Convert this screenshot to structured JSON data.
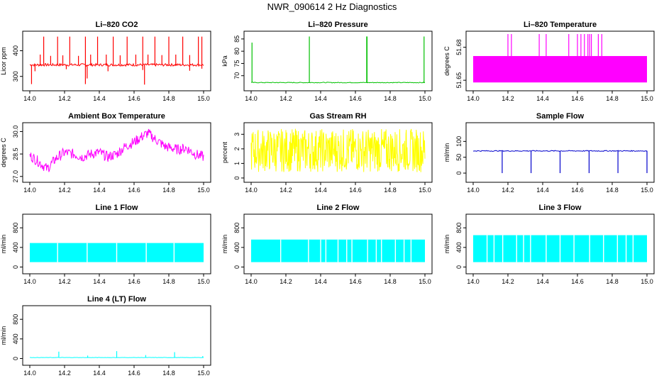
{
  "title": "NWR_090614  2 Hz Diagnostics",
  "chart_data": [
    {
      "type": "line",
      "title": "Li–820 CO2",
      "ylabel": "Licor ppm",
      "xlim": [
        14.0,
        15.0
      ],
      "ylim": [
        255,
        465
      ],
      "x_ticks": [
        "14.0",
        "14.2",
        "14.4",
        "14.6",
        "14.8",
        "15.0"
      ],
      "y_ticks": [
        {
          "v": 300,
          "label": "300"
        },
        {
          "v": 400,
          "label": "400"
        }
      ],
      "color": "#ff0000",
      "gen": {
        "mode": "noisy",
        "base": 345,
        "noise": 5,
        "n": 250
      },
      "spikes": [
        {
          "x": 14.08,
          "y": 455
        },
        {
          "x": 14.16,
          "y": 455
        },
        {
          "x": 14.23,
          "y": 455
        },
        {
          "x": 14.32,
          "y": 455
        },
        {
          "x": 14.39,
          "y": 455
        },
        {
          "x": 14.48,
          "y": 455
        },
        {
          "x": 14.56,
          "y": 455
        },
        {
          "x": 14.65,
          "y": 455
        },
        {
          "x": 14.72,
          "y": 455
        },
        {
          "x": 14.8,
          "y": 455
        },
        {
          "x": 14.88,
          "y": 455
        },
        {
          "x": 14.97,
          "y": 455
        },
        {
          "x": 14.99,
          "y": 455
        },
        {
          "x": 14.06,
          "y": 385
        },
        {
          "x": 14.12,
          "y": 380
        },
        {
          "x": 14.19,
          "y": 382
        },
        {
          "x": 14.28,
          "y": 380
        },
        {
          "x": 14.35,
          "y": 385
        },
        {
          "x": 14.44,
          "y": 385
        },
        {
          "x": 14.52,
          "y": 382
        },
        {
          "x": 14.61,
          "y": 385
        },
        {
          "x": 14.68,
          "y": 385
        },
        {
          "x": 14.76,
          "y": 383
        },
        {
          "x": 14.84,
          "y": 385
        },
        {
          "x": 14.92,
          "y": 383
        },
        {
          "x": 14.01,
          "y": 270
        },
        {
          "x": 14.03,
          "y": 320
        },
        {
          "x": 14.21,
          "y": 328
        },
        {
          "x": 14.32,
          "y": 270
        },
        {
          "x": 14.33,
          "y": 292
        },
        {
          "x": 14.45,
          "y": 320
        },
        {
          "x": 14.66,
          "y": 268
        },
        {
          "x": 14.65,
          "y": 325
        },
        {
          "x": 14.92,
          "y": 322
        },
        {
          "x": 14.99,
          "y": 330
        }
      ]
    },
    {
      "type": "line",
      "title": "Li–820 Pressure",
      "ylabel": "kPa",
      "xlim": [
        14.0,
        15.0
      ],
      "ylim": [
        65,
        87
      ],
      "x_ticks": [
        "14.0",
        "14.2",
        "14.4",
        "14.6",
        "14.8",
        "15.0"
      ],
      "y_ticks": [
        {
          "v": 70,
          "label": "70"
        },
        {
          "v": 75,
          "label": "75"
        },
        {
          "v": 80,
          "label": "80"
        },
        {
          "v": 85,
          "label": "85"
        }
      ],
      "color": "#00c000",
      "gen": {
        "mode": "noisy",
        "base": 67.2,
        "noise": 0.15,
        "n": 200
      },
      "spikes": [
        {
          "x": 14.005,
          "y": 83.5
        },
        {
          "x": 14.335,
          "y": 86
        },
        {
          "x": 14.665,
          "y": 86
        },
        {
          "x": 14.667,
          "y": 86
        },
        {
          "x": 14.995,
          "y": 86
        }
      ]
    },
    {
      "type": "area",
      "title": "Li–820 Temperature",
      "ylabel": "degrees C",
      "xlim": [
        14.0,
        15.0
      ],
      "ylim": [
        51.643,
        51.692
      ],
      "x_ticks": [
        "14.0",
        "14.2",
        "14.4",
        "14.6",
        "14.8",
        "15.0"
      ],
      "y_ticks": [
        {
          "v": 51.65,
          "label": "51.65"
        },
        {
          "v": 51.68,
          "label": "51.68"
        }
      ],
      "color": "#ff00ff",
      "band": {
        "low": 51.648,
        "high": 51.672
      },
      "spikes": [
        {
          "x": 14.2,
          "y": 51.692
        },
        {
          "x": 14.22,
          "y": 51.692
        },
        {
          "x": 14.38,
          "y": 51.692
        },
        {
          "x": 14.42,
          "y": 51.692
        },
        {
          "x": 14.55,
          "y": 51.692
        },
        {
          "x": 14.6,
          "y": 51.692
        },
        {
          "x": 14.62,
          "y": 51.692
        },
        {
          "x": 14.64,
          "y": 51.692
        },
        {
          "x": 14.66,
          "y": 51.692
        },
        {
          "x": 14.67,
          "y": 51.692
        },
        {
          "x": 14.68,
          "y": 51.692
        },
        {
          "x": 14.72,
          "y": 51.692
        },
        {
          "x": 14.74,
          "y": 51.692
        }
      ]
    },
    {
      "type": "line",
      "title": "Ambient Box Temperature",
      "ylabel": "degrees C",
      "xlim": [
        14.0,
        15.0
      ],
      "ylim": [
        26.8,
        30.4
      ],
      "x_ticks": [
        "14.0",
        "14.2",
        "14.4",
        "14.6",
        "14.8",
        "15.0"
      ],
      "y_ticks": [
        {
          "v": 27.0,
          "label": "27.0"
        },
        {
          "v": 28.5,
          "label": "28.5"
        },
        {
          "v": 30.0,
          "label": "30.0"
        }
      ],
      "color": "#ff00ff",
      "gen": {
        "mode": "curve",
        "noise": 0.35,
        "n": 300,
        "knots": [
          [
            14.0,
            28.4
          ],
          [
            14.05,
            28.0
          ],
          [
            14.1,
            27.5
          ],
          [
            14.15,
            28.2
          ],
          [
            14.2,
            28.6
          ],
          [
            14.25,
            28.5
          ],
          [
            14.3,
            28.3
          ],
          [
            14.35,
            28.5
          ],
          [
            14.4,
            28.6
          ],
          [
            14.45,
            28.3
          ],
          [
            14.5,
            28.5
          ],
          [
            14.55,
            29.0
          ],
          [
            14.6,
            29.3
          ],
          [
            14.65,
            29.7
          ],
          [
            14.68,
            29.9
          ],
          [
            14.72,
            29.5
          ],
          [
            14.78,
            29.0
          ],
          [
            14.85,
            28.8
          ],
          [
            14.9,
            28.9
          ],
          [
            14.95,
            28.5
          ],
          [
            15.0,
            28.3
          ]
        ]
      }
    },
    {
      "type": "line",
      "title": "Gas Stream RH",
      "ylabel": "percent",
      "xlim": [
        14.0,
        15.0
      ],
      "ylim": [
        -0.1,
        3.6
      ],
      "x_ticks": [
        "14.0",
        "14.2",
        "14.4",
        "14.6",
        "14.8",
        "15.0"
      ],
      "y_ticks": [
        {
          "v": 0,
          "label": "0"
        },
        {
          "v": 1,
          "label": "1"
        },
        {
          "v": 2,
          "label": "2"
        },
        {
          "v": 3,
          "label": "3"
        }
      ],
      "color": "#ffff00",
      "gen": {
        "mode": "noisy",
        "base": 1.9,
        "noise": 1.5,
        "n": 420
      }
    },
    {
      "type": "line",
      "title": "Sample Flow",
      "ylabel": "ml/min",
      "xlim": [
        14.0,
        15.0
      ],
      "ylim": [
        -20,
        150
      ],
      "x_ticks": [
        "14.0",
        "14.2",
        "14.4",
        "14.6",
        "14.8",
        "15.0"
      ],
      "y_ticks": [
        {
          "v": 0,
          "label": "0"
        },
        {
          "v": 50,
          "label": "50"
        },
        {
          "v": 100,
          "label": "100"
        }
      ],
      "color": "#0000cc",
      "gen": {
        "mode": "noisy",
        "base": 70,
        "noise": 1.5,
        "n": 200
      },
      "spikes": [
        {
          "x": 14.167,
          "y": 0
        },
        {
          "x": 14.333,
          "y": 0
        },
        {
          "x": 14.5,
          "y": 0
        },
        {
          "x": 14.667,
          "y": 0
        },
        {
          "x": 14.833,
          "y": 0
        },
        {
          "x": 15.0,
          "y": 0
        }
      ]
    },
    {
      "type": "area",
      "title": "Line 1 Flow",
      "ylabel": "ml/min",
      "xlim": [
        14.0,
        15.0
      ],
      "ylim": [
        -80,
        1020
      ],
      "x_ticks": [
        "14.0",
        "14.2",
        "14.4",
        "14.6",
        "14.8",
        "15.0"
      ],
      "y_ticks": [
        {
          "v": 0,
          "label": "0"
        },
        {
          "v": 400,
          "label": "400"
        },
        {
          "v": 800,
          "label": "800"
        }
      ],
      "color": "#00ffff",
      "band": {
        "low": 100,
        "high": 490
      },
      "gaps": [
        14.16,
        14.33,
        14.5,
        14.67,
        14.83
      ]
    },
    {
      "type": "area",
      "title": "Line 2 Flow",
      "ylabel": "ml/min",
      "xlim": [
        14.0,
        15.0
      ],
      "ylim": [
        -80,
        1020
      ],
      "x_ticks": [
        "14.0",
        "14.2",
        "14.4",
        "14.6",
        "14.8",
        "15.0"
      ],
      "y_ticks": [
        {
          "v": 0,
          "label": "0"
        },
        {
          "v": 400,
          "label": "400"
        },
        {
          "v": 800,
          "label": "800"
        }
      ],
      "color": "#00ffff",
      "band": {
        "low": 100,
        "high": 560
      },
      "gaps": [
        14.17,
        14.33,
        14.4,
        14.43,
        14.5,
        14.55,
        14.58,
        14.67,
        14.72,
        14.75,
        14.83,
        14.88,
        14.92
      ]
    },
    {
      "type": "area",
      "title": "Line 3 Flow",
      "ylabel": "ml/min",
      "xlim": [
        14.0,
        15.0
      ],
      "ylim": [
        -80,
        1020
      ],
      "x_ticks": [
        "14.0",
        "14.2",
        "14.4",
        "14.6",
        "14.8",
        "15.0"
      ],
      "y_ticks": [
        {
          "v": 0,
          "label": "0"
        },
        {
          "v": 400,
          "label": "400"
        },
        {
          "v": 800,
          "label": "800"
        }
      ],
      "color": "#00ffff",
      "band": {
        "low": 100,
        "high": 650
      },
      "gaps": [
        14.08,
        14.12,
        14.17,
        14.25,
        14.29,
        14.33,
        14.42,
        14.5,
        14.58,
        14.67,
        14.75,
        14.83,
        14.88,
        14.92
      ]
    },
    {
      "type": "line",
      "title": "Line 4 (LT) Flow",
      "ylabel": "ml/min",
      "xlim": [
        14.0,
        15.0
      ],
      "ylim": [
        -80,
        1020
      ],
      "x_ticks": [
        "14.0",
        "14.2",
        "14.4",
        "14.6",
        "14.8",
        "15.0"
      ],
      "y_ticks": [
        {
          "v": 0,
          "label": "0"
        },
        {
          "v": 400,
          "label": "400"
        },
        {
          "v": 800,
          "label": "800"
        }
      ],
      "color": "#00ffff",
      "gen": {
        "mode": "noisy",
        "base": 20,
        "noise": 3,
        "n": 200
      },
      "spikes": [
        {
          "x": 14.167,
          "y": 140
        },
        {
          "x": 14.333,
          "y": 60
        },
        {
          "x": 14.5,
          "y": 150
        },
        {
          "x": 14.667,
          "y": 70
        },
        {
          "x": 14.833,
          "y": 130
        },
        {
          "x": 14.995,
          "y": 50
        }
      ]
    }
  ]
}
